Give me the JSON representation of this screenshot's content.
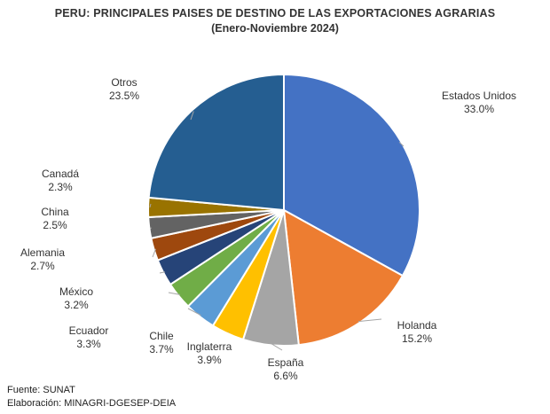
{
  "chart_data": {
    "type": "pie",
    "title": "PERU: PRINCIPALES PAISES DE DESTINO DE LAS EXPORTACIONES AGRARIAS",
    "subtitle": "(Enero-Noviembre 2024)",
    "slices": [
      {
        "label": "Estados Unidos",
        "value": 33.0,
        "value_label": "33.0%",
        "color": "#4472C4"
      },
      {
        "label": "Holanda",
        "value": 15.2,
        "value_label": "15.2%",
        "color": "#ED7D31"
      },
      {
        "label": "España",
        "value": 6.6,
        "value_label": "6.6%",
        "color": "#A5A5A5"
      },
      {
        "label": "Inglaterra",
        "value": 3.9,
        "value_label": "3.9%",
        "color": "#FFC000"
      },
      {
        "label": "Chile",
        "value": 3.7,
        "value_label": "3.7%",
        "color": "#5B9BD5"
      },
      {
        "label": "Ecuador",
        "value": 3.3,
        "value_label": "3.3%",
        "color": "#70AD47"
      },
      {
        "label": "México",
        "value": 3.2,
        "value_label": "3.2%",
        "color": "#264478"
      },
      {
        "label": "Alemania",
        "value": 2.7,
        "value_label": "2.7%",
        "color": "#9E480E"
      },
      {
        "label": "China",
        "value": 2.5,
        "value_label": "2.5%",
        "color": "#636363"
      },
      {
        "label": "Canadá",
        "value": 2.3,
        "value_label": "2.3%",
        "color": "#997300"
      },
      {
        "label": "Otros",
        "value": 23.5,
        "value_label": "23.5%",
        "color": "#255E91"
      }
    ]
  },
  "footer": {
    "source": "Fuente:  SUNAT",
    "elaboration": "Elaboración: MINAGRI-DGESEP-DEIA"
  }
}
